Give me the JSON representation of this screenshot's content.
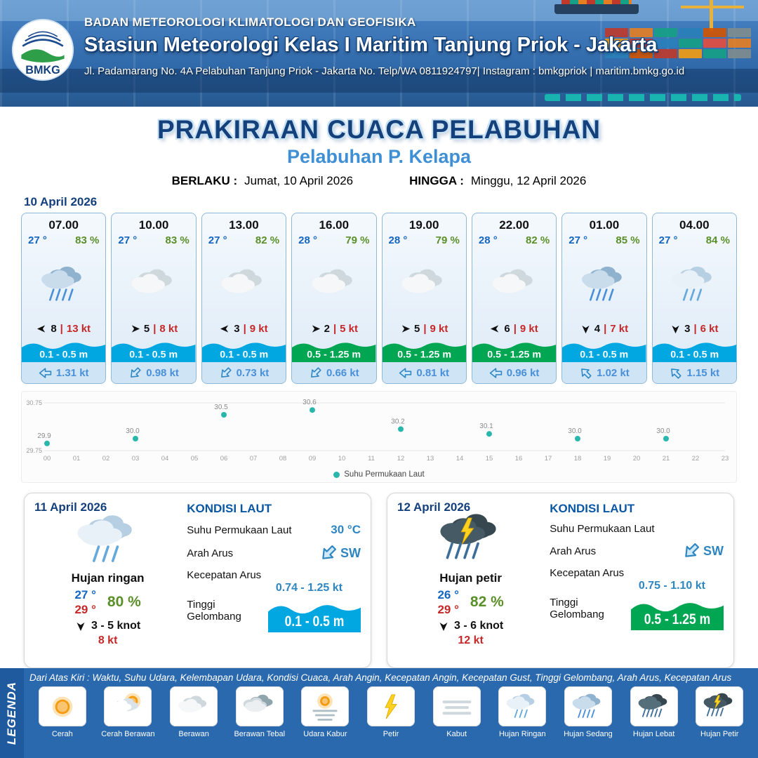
{
  "header": {
    "logo_label": "BMKG",
    "agency": "BADAN METEOROLOGI KLIMATOLOGI DAN GEOFISIKA",
    "station": "Stasiun Meteorologi Kelas I Maritim Tanjung Priok - Jakarta",
    "address": "Jl. Padamarang No. 4A Pelabuhan Tanjung Priok - Jakarta No. Telp/WA 0811924797| Instagram : bmkgpriok | maritim.bmkg.go.id"
  },
  "title": {
    "main": "PRAKIRAAN CUACA PELABUHAN",
    "subtitle": "Pelabuhan P. Kelapa",
    "berlaku_label": "BERLAKU :",
    "berlaku_value": "Jumat, 10 April 2026",
    "hingga_label": "HINGGA :",
    "hingga_value": "Minggu, 12 April 2026"
  },
  "colors": {
    "wave_blue": "#00a7e1",
    "wave_green": "#00a651",
    "temp_blue": "#1565c0",
    "humidity_green": "#5a8f29",
    "gust_red": "#c62828",
    "accent_blue": "#14407c",
    "subtitle_blue": "#3f8fd6"
  },
  "forecast": {
    "date": "10 April 2026",
    "cards": [
      {
        "time": "07.00",
        "temp": "27 °",
        "humidity": "83 %",
        "icon": "hujan-sedang",
        "wind_dir": "W",
        "wind_speed": "8",
        "divider": "|",
        "gust": "13 kt",
        "wave": "0.1 - 0.5 m",
        "wave_color": "blue",
        "current_dir": "W",
        "current_speed": "1.31 kt"
      },
      {
        "time": "10.00",
        "temp": "27 °",
        "humidity": "83 %",
        "icon": "berawan",
        "wind_dir": "E",
        "wind_speed": "5",
        "divider": "|",
        "gust": "8 kt",
        "wave": "0.1 - 0.5 m",
        "wave_color": "blue",
        "current_dir": "SW",
        "current_speed": "0.98 kt"
      },
      {
        "time": "13.00",
        "temp": "27 °",
        "humidity": "82 %",
        "icon": "berawan",
        "wind_dir": "W",
        "wind_speed": "3",
        "divider": "|",
        "gust": "9 kt",
        "wave": "0.1 - 0.5 m",
        "wave_color": "blue",
        "current_dir": "SW",
        "current_speed": "0.73 kt"
      },
      {
        "time": "16.00",
        "temp": "28 °",
        "humidity": "79 %",
        "icon": "berawan",
        "wind_dir": "E",
        "wind_speed": "2",
        "divider": "|",
        "gust": "5 kt",
        "wave": "0.5 - 1.25 m",
        "wave_color": "green",
        "current_dir": "SW",
        "current_speed": "0.66 kt"
      },
      {
        "time": "19.00",
        "temp": "28 °",
        "humidity": "79 %",
        "icon": "berawan",
        "wind_dir": "E",
        "wind_speed": "5",
        "divider": "|",
        "gust": "9 kt",
        "wave": "0.5 - 1.25 m",
        "wave_color": "green",
        "current_dir": "W",
        "current_speed": "0.81 kt"
      },
      {
        "time": "22.00",
        "temp": "28 °",
        "humidity": "82 %",
        "icon": "berawan",
        "wind_dir": "W",
        "wind_speed": "6",
        "divider": "|",
        "gust": "9 kt",
        "wave": "0.5 - 1.25 m",
        "wave_color": "green",
        "current_dir": "W",
        "current_speed": "0.96 kt"
      },
      {
        "time": "01.00",
        "temp": "27 °",
        "humidity": "85 %",
        "icon": "hujan-sedang",
        "wind_dir": "S",
        "wind_speed": "4",
        "divider": "|",
        "gust": "7 kt",
        "wave": "0.1 - 0.5 m",
        "wave_color": "blue",
        "current_dir": "NW",
        "current_speed": "1.02 kt"
      },
      {
        "time": "04.00",
        "temp": "27 °",
        "humidity": "84 %",
        "icon": "hujan-ringan",
        "wind_dir": "S",
        "wind_speed": "3",
        "divider": "|",
        "gust": "6 kt",
        "wave": "0.1 - 0.5 m",
        "wave_color": "blue",
        "current_dir": "NW",
        "current_speed": "1.15 kt"
      }
    ]
  },
  "chart_data": {
    "type": "scatter",
    "title": "",
    "legend": "Suhu Permukaan Laut",
    "x_hours": [
      0,
      3,
      6,
      9,
      12,
      15,
      18,
      21
    ],
    "values": [
      29.9,
      30.0,
      30.5,
      30.6,
      30.2,
      30.1,
      30.0,
      30.0
    ],
    "x_tick_labels": [
      "00",
      "01",
      "02",
      "03",
      "04",
      "05",
      "06",
      "07",
      "08",
      "09",
      "10",
      "11",
      "12",
      "13",
      "14",
      "15",
      "16",
      "17",
      "18",
      "19",
      "20",
      "21",
      "22",
      "23"
    ],
    "ylim": [
      29.75,
      30.75
    ],
    "y_ticks": [
      29.75,
      30.75
    ],
    "dot_color": "#29b6ad",
    "grid": true,
    "legend_position": "bottom"
  },
  "daily": [
    {
      "date": "11 April 2026",
      "icon": "hujan-ringan",
      "condition": "Hujan ringan",
      "temp_min": "27 °",
      "temp_max": "29 °",
      "humidity": "80 %",
      "wind_dir": "S",
      "wind_range": "3 - 5 knot",
      "gust": "8 kt",
      "sea": {
        "title": "KONDISI LAUT",
        "sst_label": "Suhu Permukaan Laut",
        "sst_value": "30 °C",
        "current_dir_label": "Arah Arus",
        "current_dir": "SW",
        "current_speed_label": "Kecepatan Arus",
        "current_speed": "0.74 - 1.25 kt",
        "wave_label": "Tinggi Gelombang",
        "wave": "0.1 - 0.5 m",
        "wave_color": "blue"
      }
    },
    {
      "date": "12 April 2026",
      "icon": "hujan-petir",
      "condition": "Hujan petir",
      "temp_min": "26 °",
      "temp_max": "29 °",
      "humidity": "82 %",
      "wind_dir": "S",
      "wind_range": "3 - 6 knot",
      "gust": "12 kt",
      "sea": {
        "title": "KONDISI LAUT",
        "sst_label": "Suhu Permukaan Laut",
        "sst_value": "",
        "current_dir_label": "Arah Arus",
        "current_dir": "SW",
        "current_speed_label": "Kecepatan Arus",
        "current_speed": "0.75 - 1.10 kt",
        "wave_label": "Tinggi Gelombang",
        "wave": "0.5 - 1.25 m",
        "wave_color": "green"
      }
    }
  ],
  "legend": {
    "vertical_label": "LEGENDA",
    "description": "Dari Atas Kiri : Waktu, Suhu Udara, Kelembapan Udara, Kondisi Cuaca, Arah Angin, Kecepatan Angin, Kecepatan Gust, Tinggi Gelombang, Arah Arus, Kecepatan Arus",
    "items": [
      {
        "label": "Cerah",
        "icon": "cerah"
      },
      {
        "label": "Cerah Berawan",
        "icon": "cerah-berawan"
      },
      {
        "label": "Berawan",
        "icon": "berawan"
      },
      {
        "label": "Berawan Tebal",
        "icon": "berawan-tebal"
      },
      {
        "label": "Udara Kabur",
        "icon": "udara-kabur"
      },
      {
        "label": "Petir",
        "icon": "petir"
      },
      {
        "label": "Kabut",
        "icon": "kabut"
      },
      {
        "label": "Hujan Ringan",
        "icon": "hujan-ringan"
      },
      {
        "label": "Hujan Sedang",
        "icon": "hujan-sedang"
      },
      {
        "label": "Hujan Lebat",
        "icon": "hujan-lebat"
      },
      {
        "label": "Hujan Petir",
        "icon": "hujan-petir"
      }
    ]
  }
}
